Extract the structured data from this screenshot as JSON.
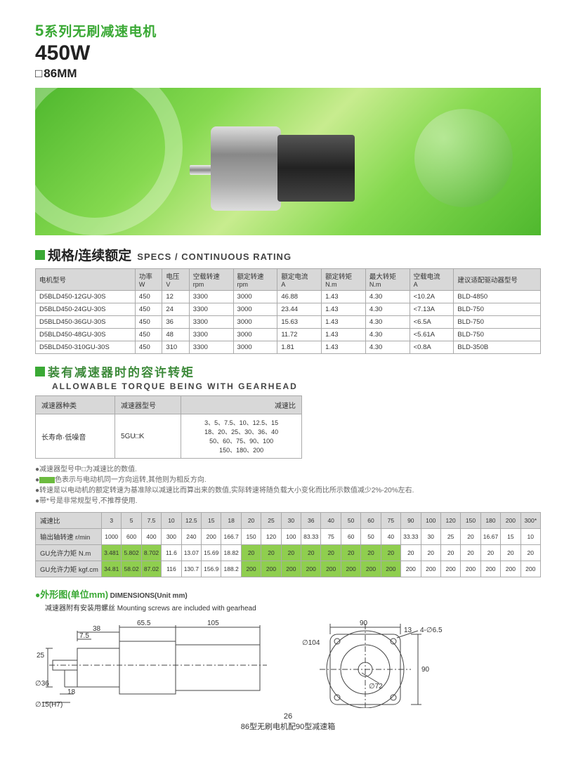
{
  "header": {
    "series_num": "5",
    "series_zh": "系列无刷减速电机",
    "wattage": "450W",
    "size": "86MM"
  },
  "specs_section": {
    "title_zh": "规格/连续额定",
    "title_en": "SPECS / CONTINUOUS RATING",
    "columns": [
      {
        "zh": "电机型号",
        "unit": ""
      },
      {
        "zh": "功率",
        "unit": "W"
      },
      {
        "zh": "电压",
        "unit": "V"
      },
      {
        "zh": "空载转速",
        "unit": "rpm"
      },
      {
        "zh": "额定转速",
        "unit": "rpm"
      },
      {
        "zh": "额定电流",
        "unit": "A"
      },
      {
        "zh": "额定转矩",
        "unit": "N.m"
      },
      {
        "zh": "最大转矩",
        "unit": "N.m"
      },
      {
        "zh": "空载电流",
        "unit": "A"
      },
      {
        "zh": "建议适配驱动器型号",
        "unit": ""
      }
    ],
    "rows": [
      [
        "D5BLD450-12GU-30S",
        "450",
        "12",
        "3300",
        "3000",
        "46.88",
        "1.43",
        "4.30",
        "<10.2A",
        "BLD-4850"
      ],
      [
        "D5BLD450-24GU-30S",
        "450",
        "24",
        "3300",
        "3000",
        "23.44",
        "1.43",
        "4.30",
        "<7.13A",
        "BLD-750"
      ],
      [
        "D5BLD450-36GU-30S",
        "450",
        "36",
        "3300",
        "3000",
        "15.63",
        "1.43",
        "4.30",
        "<6.5A",
        "BLD-750"
      ],
      [
        "D5BLD450-48GU-30S",
        "450",
        "48",
        "3300",
        "3000",
        "11.72",
        "1.43",
        "4.30",
        "<5.61A",
        "BLD-750"
      ],
      [
        "D5BLD450-310GU-30S",
        "450",
        "310",
        "3300",
        "3000",
        "1.81",
        "1.43",
        "4.30",
        "<0.8A",
        "BLD-350B"
      ]
    ]
  },
  "gearhead_section": {
    "title_zh": "装有减速器时的容许转矩",
    "title_en": "ALLOWABLE TORQUE BEING WITH GEARHEAD",
    "cols": [
      "减速器种类",
      "减速器型号",
      "减速比"
    ],
    "row": [
      "长寿命·低噪音",
      "5GU□K",
      "3、5、7.5、10、12.5、15\n18、20、25、30、36、40\n50、60、75、90、100\n150、180、200"
    ]
  },
  "notes": {
    "n1": "减速器型号中□为减速比的数值.",
    "n2_pre": "",
    "n2_post": "色表示与电动机同一方向运转,其他则为相反方向.",
    "n3": "转速是以电动机的额定转速为基准除以减速比而算出来的数值,实际转速将随负载大小变化而比所示数值减少2%-20%左右.",
    "n4": "带*号是非常规型号,不推荐使用."
  },
  "ratio_table": {
    "row_labels": [
      "减速比",
      "输出轴转速 r/min",
      "GU允许力矩 N.m",
      "GU允许力矩 kgf.cm"
    ],
    "ratios": [
      "3",
      "5",
      "7.5",
      "10",
      "12.5",
      "15",
      "18",
      "20",
      "25",
      "30",
      "36",
      "40",
      "50",
      "60",
      "75",
      "90",
      "100",
      "120",
      "150",
      "180",
      "200",
      "300*"
    ],
    "rpm": [
      "1000",
      "600",
      "400",
      "300",
      "240",
      "200",
      "166.7",
      "150",
      "120",
      "100",
      "83.33",
      "75",
      "60",
      "50",
      "40",
      "33.33",
      "30",
      "25",
      "20",
      "16.67",
      "15",
      "10"
    ],
    "nm": [
      "3.481",
      "5.802",
      "8.702",
      "11.6",
      "13.07",
      "15.69",
      "18.82",
      "20",
      "20",
      "20",
      "20",
      "20",
      "20",
      "20",
      "20",
      "20",
      "20",
      "20",
      "20",
      "20",
      "20",
      "20"
    ],
    "kgfcm": [
      "34.81",
      "58.02",
      "87.02",
      "116",
      "130.7",
      "156.9",
      "188.2",
      "200",
      "200",
      "200",
      "200",
      "200",
      "200",
      "200",
      "200",
      "200",
      "200",
      "200",
      "200",
      "200",
      "200",
      "200"
    ],
    "hl_nm": [
      true,
      true,
      true,
      false,
      false,
      false,
      false,
      true,
      true,
      true,
      true,
      true,
      true,
      true,
      true,
      false,
      false,
      false,
      false,
      false,
      false,
      false
    ],
    "hl_kgfcm": [
      true,
      true,
      true,
      false,
      false,
      false,
      false,
      true,
      true,
      true,
      true,
      true,
      true,
      true,
      true,
      false,
      false,
      false,
      false,
      false,
      false,
      false
    ]
  },
  "dimensions": {
    "title_zh": "外形图(单位mm)",
    "title_en": "DIMENSIONS(Unit mm)",
    "subtitle": "减速器附有安装用螺丝 Mounting screws are included with gearhead",
    "side": {
      "d1": "38",
      "d2": "65.5",
      "d3": "105",
      "d4": "7.5",
      "d5": "25",
      "d6": "∅36",
      "d7": "18",
      "d8": "∅15(H7)"
    },
    "front": {
      "d1": "90",
      "d2": "∅104",
      "d3": "13",
      "d4": "4-∅6.5",
      "d5": "∅72",
      "d6": "90"
    }
  },
  "footer": {
    "page_num": "26",
    "caption": "86型无刷电机配90型减速箱"
  }
}
